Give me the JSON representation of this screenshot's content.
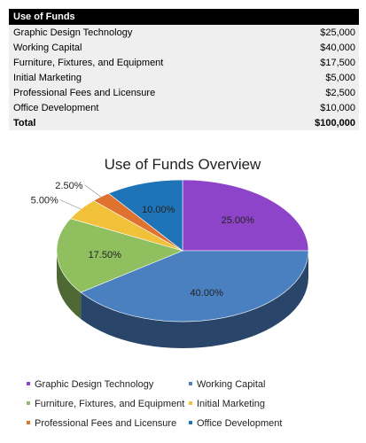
{
  "table": {
    "header": "Use of Funds",
    "rows": [
      {
        "label": "Graphic Design Technology",
        "amount": "$25,000"
      },
      {
        "label": "Working Capital",
        "amount": "$40,000"
      },
      {
        "label": "Furniture, Fixtures, and Equipment",
        "amount": "$17,500"
      },
      {
        "label": "Initial Marketing",
        "amount": "$5,000"
      },
      {
        "label": "Professional Fees and Licensure",
        "amount": "$2,500"
      },
      {
        "label": "Office Development",
        "amount": "$10,000"
      }
    ],
    "total_label": "Total",
    "total_amount": "$100,000"
  },
  "chart_data": {
    "type": "pie",
    "title": "Use of Funds Overview",
    "categories": [
      "Graphic Design Technology",
      "Working Capital",
      "Furniture, Fixtures, and Equipment",
      "Initial Marketing",
      "Professional Fees and Licensure",
      "Office Development"
    ],
    "values": [
      25,
      40,
      17.5,
      5,
      2.5,
      10
    ],
    "labels": [
      "25.00%",
      "40.00%",
      "17.50%",
      "5.00%",
      "2.50%",
      "10.00%"
    ],
    "colors": [
      "#8e44c8",
      "#4a7fc0",
      "#8fbf5f",
      "#f2c13a",
      "#e0722f",
      "#1f74b8"
    ],
    "legend": "bottom",
    "style": "3d-pie"
  }
}
